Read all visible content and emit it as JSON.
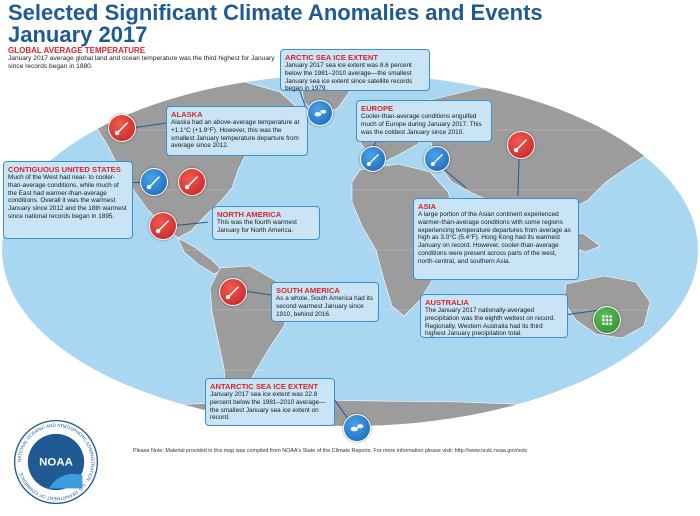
{
  "title": {
    "line1": "Selected Significant Climate Anomalies and Events",
    "line2": "January 2017"
  },
  "global": {
    "heading": "GLOBAL AVERAGE TEMPERATURE",
    "text": "January 2017 average global land and ocean temperature was the third highest for January since records began in 1880."
  },
  "callouts": {
    "arctic": {
      "heading": "ARCTIC SEA ICE EXTENT",
      "text": "January 2017 sea ice extent was 8.6 percent below the 1981–2010 average—the smallest January sea ice extent since satellite records began in 1979."
    },
    "alaska": {
      "heading": "ALASKA",
      "text": "Alaska had an above-average temperature at +1.1°C (+1.9°F). However, this was the smallest January temperature departure from average since 2012."
    },
    "europe": {
      "heading": "EUROPE",
      "text": "Cooler-than-average conditions engulfed much of Europe during January 2017. This was the coldest January since 2010."
    },
    "contiguous_us": {
      "heading": "CONTIGUOUS UNITED STATES",
      "text": "Much of the West had near- to cooler-than-average conditions, while much of the East had warmer-than-average conditions. Overall it was the warmest January since 2012 and the 18th warmest since national records began in 1895."
    },
    "north_america": {
      "heading": "NORTH AMERICA",
      "text": "This was the fourth warmest January for North America."
    },
    "asia": {
      "heading": "ASIA",
      "text": "A large portion of the Asian continent experienced warmer-than-average conditions with some regions experiencing temperature departures from average as high as 3.0°C (5.4°F). Hong Kong had its warmest January on record. However, cooler-than-average conditions were present across parts of the west, north-central, and southern Asia."
    },
    "south_america": {
      "heading": "SOUTH AMERICA",
      "text": "As a whole, South America had its second warmest January since 1910, behind 2016."
    },
    "australia": {
      "heading": "AUSTRALIA",
      "text": "The January 2017 nationally-averaged precipitation was the eighth wettest on record. Regionally, Western Australia had its third highest January precipitation total."
    },
    "antarctic": {
      "heading": "ANTARCTIC SEA ICE EXTENT",
      "text": "January 2017 sea ice extent was 22.8 percent below the 1981–2010 average—the smallest January sea ice extent on record."
    }
  },
  "note": "Please Note: Material provided in this map was compiled from NOAA's State of the Climate Reports. For more information please visit: http://www.ncdc.noaa.gov/sotc",
  "logo": {
    "text": "NOAA",
    "ring": "NATIONAL OCEANIC AND ATMOSPHERIC ADMINISTRATION · U.S. DEPARTMENT OF COMMERCE"
  },
  "colors": {
    "title": "#1f5a92",
    "heading": "#d6262d",
    "ocean": "#9fd0ee",
    "land": "#9a9a9a",
    "box": "#c8e4f5",
    "warm": "#d6262d",
    "cold": "#1a6cc0",
    "wet": "#2e8b2f"
  },
  "icons": {
    "warm": "thermometer-warm-icon",
    "cold": "thermometer-cold-icon",
    "wet": "rain-drops-icon",
    "ice": "sea-ice-icon"
  }
}
